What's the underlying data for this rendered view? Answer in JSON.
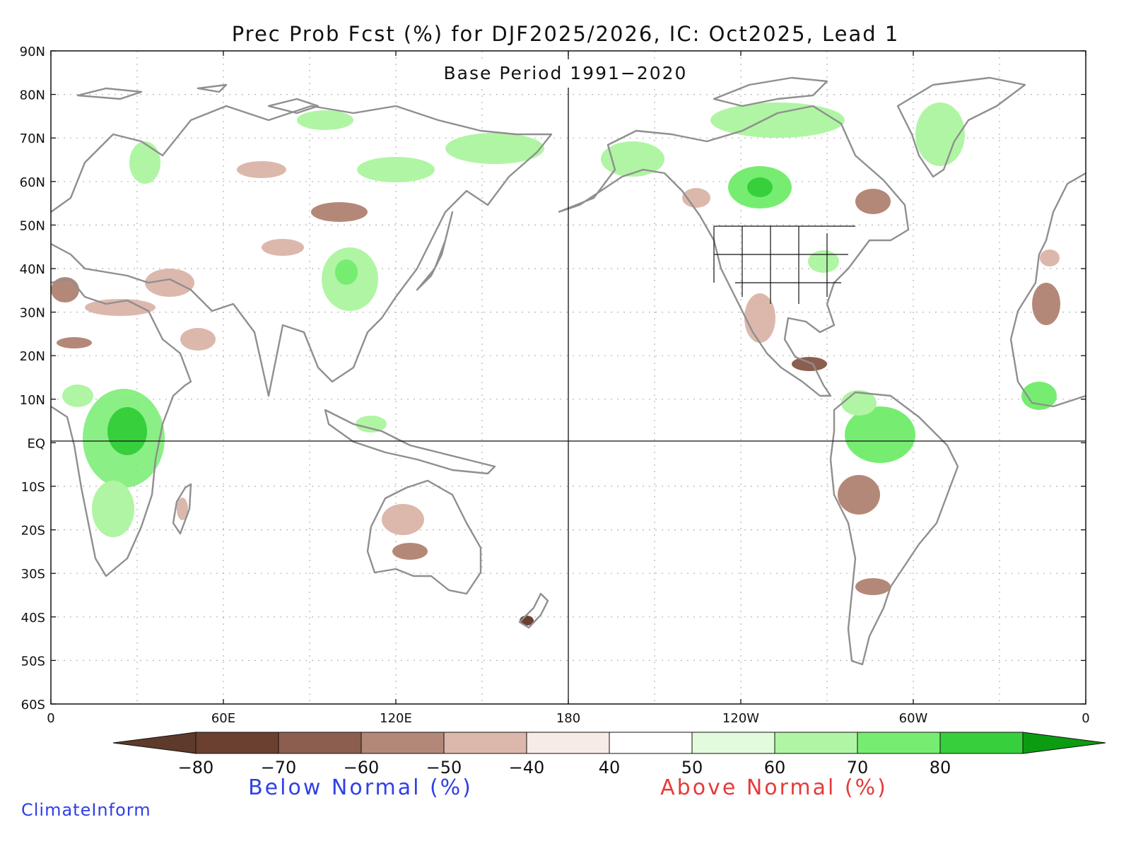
{
  "title": "Prec Prob Fcst (%) for DJF2025/2026, IC: Oct2025, Lead 1",
  "subtitle": "Base Period 1991−2020",
  "credit": "ClimateInform",
  "map": {
    "lon_range": [
      0,
      360
    ],
    "lat_range": [
      -60,
      90
    ],
    "central_meridian": 180,
    "lat_ticks": [
      {
        "value": 90,
        "label": "90N"
      },
      {
        "value": 80,
        "label": "80N"
      },
      {
        "value": 70,
        "label": "70N"
      },
      {
        "value": 60,
        "label": "60N"
      },
      {
        "value": 50,
        "label": "50N"
      },
      {
        "value": 40,
        "label": "40N"
      },
      {
        "value": 30,
        "label": "30N"
      },
      {
        "value": 20,
        "label": "20N"
      },
      {
        "value": 10,
        "label": "10N"
      },
      {
        "value": 0,
        "label": "EQ"
      },
      {
        "value": -10,
        "label": "10S"
      },
      {
        "value": -20,
        "label": "20S"
      },
      {
        "value": -30,
        "label": "30S"
      },
      {
        "value": -40,
        "label": "40S"
      },
      {
        "value": -50,
        "label": "50S"
      },
      {
        "value": -60,
        "label": "60S"
      }
    ],
    "lon_ticks": [
      {
        "value": 0,
        "label": "0"
      },
      {
        "value": 60,
        "label": "60E"
      },
      {
        "value": 120,
        "label": "120E"
      },
      {
        "value": 180,
        "label": "180"
      },
      {
        "value": 240,
        "label": "120W"
      },
      {
        "value": 300,
        "label": "60W"
      },
      {
        "value": 360,
        "label": "0"
      }
    ],
    "colors": {
      "coast": "#8f8f8f",
      "grid": "#b5b5b5",
      "land": "#ffffff"
    }
  },
  "colorbar": {
    "labels": [
      "−80",
      "−70",
      "−60",
      "−50",
      "−40",
      "40",
      "50",
      "60",
      "70",
      "80"
    ],
    "colors": [
      "#6b4030",
      "#8c5e50",
      "#b48878",
      "#dcb8ac",
      "#f6ebe5",
      "#ffffff",
      "#e2fbdc",
      "#b0f5a4",
      "#76ed70",
      "#38cf3c"
    ],
    "below_color": "#5e3a2a",
    "above_color": "#0c9c12",
    "below_label": "Below Normal (%)",
    "above_label": "Above Normal (%)"
  }
}
